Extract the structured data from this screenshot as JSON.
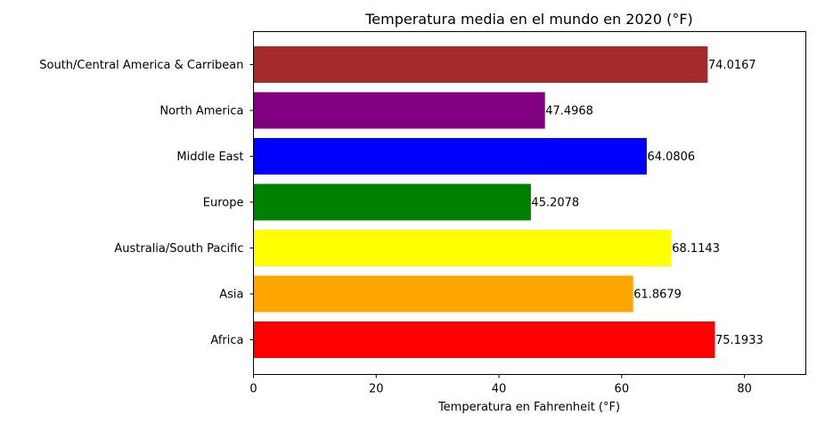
{
  "chart_data": {
    "type": "bar",
    "orientation": "horizontal",
    "title": "Temperatura media en el mundo en 2020 (°F)",
    "xlabel": "Temperatura en Fahrenheit (°F)",
    "ylabel": "",
    "xlim": [
      0,
      90
    ],
    "xticks": [
      0,
      20,
      40,
      60,
      80
    ],
    "xtick_labels": [
      "0",
      "20",
      "40",
      "60",
      "80"
    ],
    "grid": false,
    "categories": [
      "Africa",
      "Asia",
      "Australia/South Pacific",
      "Europe",
      "Middle East",
      "North America",
      "South/Central America & Carribean"
    ],
    "values": [
      75.1933,
      61.8679,
      68.1143,
      45.2078,
      64.0806,
      47.4968,
      74.0167
    ],
    "value_labels": [
      "75.1933",
      "61.8679",
      "68.1143",
      "45.2078",
      "64.0806",
      "47.4968",
      "74.0167"
    ],
    "colors": [
      "#ff0000",
      "#ffa500",
      "#ffff00",
      "#008000",
      "#0000ff",
      "#800080",
      "#a52a2a"
    ]
  }
}
